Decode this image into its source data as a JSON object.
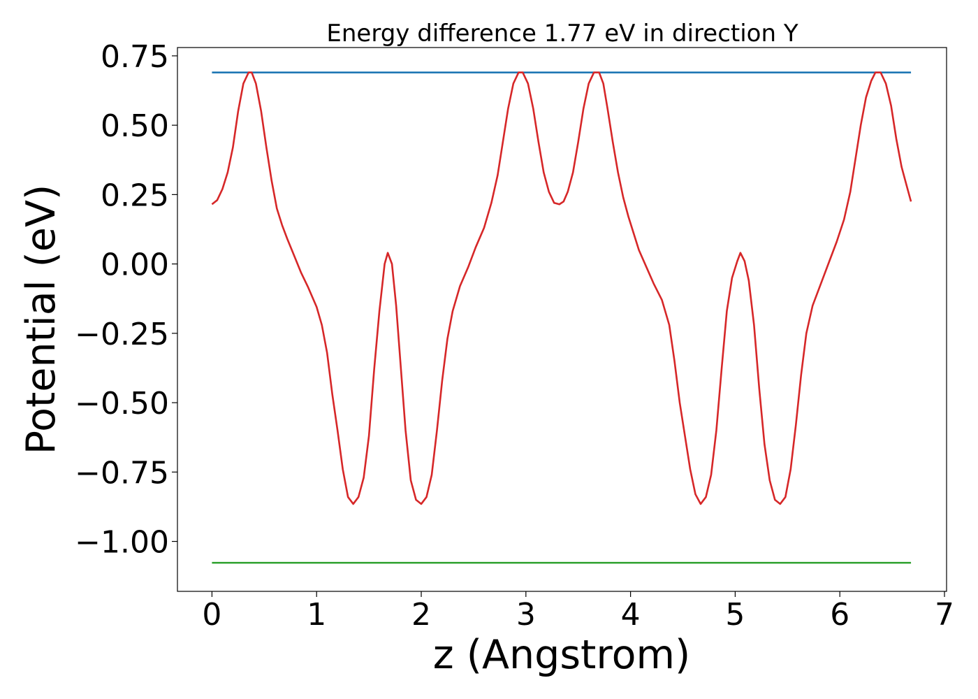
{
  "chart_data": {
    "type": "line",
    "title": "Energy difference 1.77 eV in direction Y",
    "xlabel": "z (Angstrom)",
    "ylabel": "Potential (eV)",
    "xlim": [
      -0.33,
      7.02
    ],
    "ylim": [
      -1.18,
      0.78
    ],
    "x_ticks": [
      0,
      1,
      2,
      3,
      4,
      5,
      6,
      7
    ],
    "x_tick_labels": [
      "0",
      "1",
      "2",
      "3",
      "4",
      "5",
      "6",
      "7"
    ],
    "y_ticks": [
      0.75,
      0.5,
      0.25,
      0.0,
      -0.25,
      -0.5,
      -0.75,
      -1.0
    ],
    "y_tick_labels": [
      "0.75",
      "0.50",
      "0.25",
      "0.00",
      "−0.25",
      "−0.50",
      "−0.75",
      "−1.00"
    ],
    "grid": false,
    "series": [
      {
        "color": "#1f77b4",
        "x": [
          0.0,
          6.68
        ],
        "y": [
          0.69,
          0.69
        ]
      },
      {
        "color": "#2ca02c",
        "x": [
          0.0,
          6.68
        ],
        "y": [
          -1.077,
          -1.077
        ]
      },
      {
        "color": "#d62728",
        "x": [
          0.0,
          0.05,
          0.1,
          0.15,
          0.2,
          0.25,
          0.3,
          0.35,
          0.38,
          0.42,
          0.47,
          0.52,
          0.57,
          0.62,
          0.67,
          0.72,
          0.78,
          0.85,
          0.92,
          1.0,
          1.05,
          1.1,
          1.15,
          1.2,
          1.25,
          1.3,
          1.35,
          1.4,
          1.45,
          1.5,
          1.55,
          1.6,
          1.65,
          1.68,
          1.72,
          1.76,
          1.8,
          1.85,
          1.9,
          1.95,
          2.0,
          2.05,
          2.1,
          2.15,
          2.2,
          2.25,
          2.3,
          2.37,
          2.45,
          2.52,
          2.6,
          2.67,
          2.73,
          2.78,
          2.83,
          2.88,
          2.93,
          2.97,
          3.02,
          3.07,
          3.12,
          3.17,
          3.22,
          3.27,
          3.32,
          3.36,
          3.4,
          3.45,
          3.5,
          3.55,
          3.6,
          3.65,
          3.7,
          3.74,
          3.78,
          3.83,
          3.88,
          3.93,
          3.98,
          4.03,
          4.08,
          4.15,
          4.22,
          4.3,
          4.37,
          4.42,
          4.47,
          4.52,
          4.57,
          4.62,
          4.67,
          4.72,
          4.77,
          4.82,
          4.87,
          4.92,
          4.97,
          5.02,
          5.05,
          5.09,
          5.13,
          5.18,
          5.23,
          5.28,
          5.33,
          5.38,
          5.43,
          5.48,
          5.53,
          5.58,
          5.63,
          5.68,
          5.74,
          5.82,
          5.9,
          5.97,
          6.04,
          6.1,
          6.15,
          6.2,
          6.25,
          6.3,
          6.34,
          6.39,
          6.44,
          6.49,
          6.54,
          6.59,
          6.64,
          6.68
        ],
        "y": [
          0.215,
          0.23,
          0.27,
          0.33,
          0.42,
          0.55,
          0.65,
          0.69,
          0.69,
          0.65,
          0.55,
          0.42,
          0.3,
          0.2,
          0.14,
          0.09,
          0.035,
          -0.03,
          -0.085,
          -0.155,
          -0.22,
          -0.32,
          -0.47,
          -0.6,
          -0.74,
          -0.84,
          -0.865,
          -0.84,
          -0.77,
          -0.62,
          -0.38,
          -0.17,
          0.0,
          0.04,
          0.0,
          -0.15,
          -0.35,
          -0.6,
          -0.78,
          -0.85,
          -0.865,
          -0.84,
          -0.76,
          -0.6,
          -0.42,
          -0.27,
          -0.17,
          -0.08,
          -0.01,
          0.06,
          0.13,
          0.22,
          0.32,
          0.44,
          0.56,
          0.65,
          0.69,
          0.69,
          0.65,
          0.56,
          0.44,
          0.33,
          0.26,
          0.22,
          0.215,
          0.225,
          0.26,
          0.33,
          0.44,
          0.56,
          0.65,
          0.69,
          0.69,
          0.65,
          0.56,
          0.44,
          0.33,
          0.24,
          0.17,
          0.11,
          0.05,
          -0.01,
          -0.07,
          -0.13,
          -0.22,
          -0.35,
          -0.5,
          -0.62,
          -0.74,
          -0.83,
          -0.865,
          -0.84,
          -0.76,
          -0.6,
          -0.38,
          -0.17,
          -0.05,
          0.01,
          0.04,
          0.01,
          -0.06,
          -0.22,
          -0.45,
          -0.65,
          -0.78,
          -0.85,
          -0.865,
          -0.84,
          -0.74,
          -0.58,
          -0.4,
          -0.25,
          -0.15,
          -0.07,
          0.01,
          0.08,
          0.16,
          0.26,
          0.38,
          0.5,
          0.6,
          0.66,
          0.69,
          0.69,
          0.65,
          0.57,
          0.45,
          0.35,
          0.28,
          0.225
        ]
      }
    ]
  }
}
